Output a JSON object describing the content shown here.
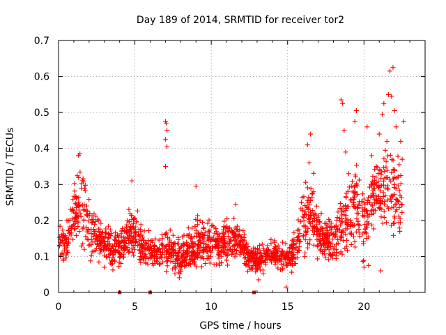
{
  "chart_data": {
    "type": "scatter",
    "title": "Day 189 of 2014, SRMTID for receiver tor2",
    "xlabel": "GPS time / hours",
    "ylabel": "SRMTID / TECUs",
    "xlim": [
      0,
      24
    ],
    "ylim": [
      0,
      0.7
    ],
    "xticks": [
      0,
      5,
      10,
      15,
      20
    ],
    "xtick_labels": [
      "0",
      "5",
      "10",
      "15",
      "20"
    ],
    "yticks": [
      0,
      0.1,
      0.2,
      0.3,
      0.4,
      0.5,
      0.6,
      0.7
    ],
    "ytick_labels": [
      "0",
      "0.1",
      "0.2",
      "0.3",
      "0.4",
      "0.5",
      "0.6",
      "0.7"
    ],
    "grid": true,
    "marker": "+",
    "series_color": "#ff0000",
    "baseline_markers_x": [
      4.0,
      6.0,
      12.8
    ],
    "trend": [
      [
        0.0,
        0.15,
        0.035
      ],
      [
        0.6,
        0.13,
        0.04
      ],
      [
        1.0,
        0.22,
        0.07
      ],
      [
        1.5,
        0.25,
        0.07
      ],
      [
        2.0,
        0.19,
        0.06
      ],
      [
        2.5,
        0.15,
        0.04
      ],
      [
        3.0,
        0.14,
        0.035
      ],
      [
        3.5,
        0.12,
        0.03
      ],
      [
        4.0,
        0.12,
        0.03
      ],
      [
        4.5,
        0.16,
        0.045
      ],
      [
        5.0,
        0.17,
        0.05
      ],
      [
        5.5,
        0.12,
        0.03
      ],
      [
        6.0,
        0.12,
        0.03
      ],
      [
        6.5,
        0.11,
        0.03
      ],
      [
        7.0,
        0.12,
        0.04
      ],
      [
        7.5,
        0.11,
        0.035
      ],
      [
        8.0,
        0.1,
        0.035
      ],
      [
        8.5,
        0.12,
        0.035
      ],
      [
        9.0,
        0.13,
        0.04
      ],
      [
        9.5,
        0.14,
        0.045
      ],
      [
        10.0,
        0.15,
        0.045
      ],
      [
        10.5,
        0.13,
        0.035
      ],
      [
        11.0,
        0.14,
        0.04
      ],
      [
        11.5,
        0.15,
        0.04
      ],
      [
        12.0,
        0.13,
        0.035
      ],
      [
        12.5,
        0.1,
        0.025
      ],
      [
        13.0,
        0.09,
        0.025
      ],
      [
        13.5,
        0.1,
        0.025
      ],
      [
        14.0,
        0.11,
        0.025
      ],
      [
        14.5,
        0.1,
        0.025
      ],
      [
        15.0,
        0.1,
        0.025
      ],
      [
        15.5,
        0.12,
        0.04
      ],
      [
        16.0,
        0.2,
        0.06
      ],
      [
        16.5,
        0.22,
        0.07
      ],
      [
        17.0,
        0.17,
        0.05
      ],
      [
        17.5,
        0.15,
        0.04
      ],
      [
        18.0,
        0.14,
        0.04
      ],
      [
        18.5,
        0.18,
        0.06
      ],
      [
        19.0,
        0.22,
        0.08
      ],
      [
        19.5,
        0.24,
        0.08
      ],
      [
        20.0,
        0.2,
        0.07
      ],
      [
        20.5,
        0.24,
        0.08
      ],
      [
        21.0,
        0.27,
        0.08
      ],
      [
        21.5,
        0.3,
        0.1
      ],
      [
        22.0,
        0.26,
        0.09
      ],
      [
        22.5,
        0.24,
        0.07
      ]
    ],
    "spikes": [
      [
        1.4,
        0.385
      ],
      [
        3.0,
        0.07
      ],
      [
        4.8,
        0.31
      ],
      [
        7.0,
        0.475
      ],
      [
        7.05,
        0.47
      ],
      [
        7.1,
        0.45
      ],
      [
        7.0,
        0.425
      ],
      [
        7.1,
        0.405
      ],
      [
        7.0,
        0.35
      ],
      [
        9.0,
        0.295
      ],
      [
        11.6,
        0.245
      ],
      [
        13.1,
        0.035
      ],
      [
        14.9,
        0.015
      ],
      [
        16.5,
        0.44
      ],
      [
        16.3,
        0.41
      ],
      [
        16.4,
        0.36
      ],
      [
        18.5,
        0.535
      ],
      [
        18.6,
        0.525
      ],
      [
        18.7,
        0.45
      ],
      [
        19.5,
        0.505
      ],
      [
        19.4,
        0.475
      ],
      [
        20.2,
        0.46
      ],
      [
        20.6,
        0.3
      ],
      [
        20.8,
        0.35
      ],
      [
        21.3,
        0.525
      ],
      [
        21.2,
        0.495
      ],
      [
        21.6,
        0.55
      ],
      [
        21.8,
        0.545
      ],
      [
        21.9,
        0.625
      ],
      [
        21.7,
        0.615
      ],
      [
        22.0,
        0.505
      ],
      [
        22.1,
        0.46
      ],
      [
        22.4,
        0.42
      ],
      [
        22.5,
        0.37
      ],
      [
        22.3,
        0.355
      ],
      [
        21.5,
        0.42
      ],
      [
        21.0,
        0.44
      ],
      [
        20.5,
        0.38
      ],
      [
        19.0,
        0.33
      ],
      [
        18.8,
        0.39
      ],
      [
        22.6,
        0.475
      ],
      [
        20.0,
        0.07
      ],
      [
        20.3,
        0.075
      ],
      [
        21.1,
        0.06
      ],
      [
        21.4,
        0.395
      ],
      [
        22.0,
        0.3
      ]
    ],
    "n_samples": 1900
  }
}
